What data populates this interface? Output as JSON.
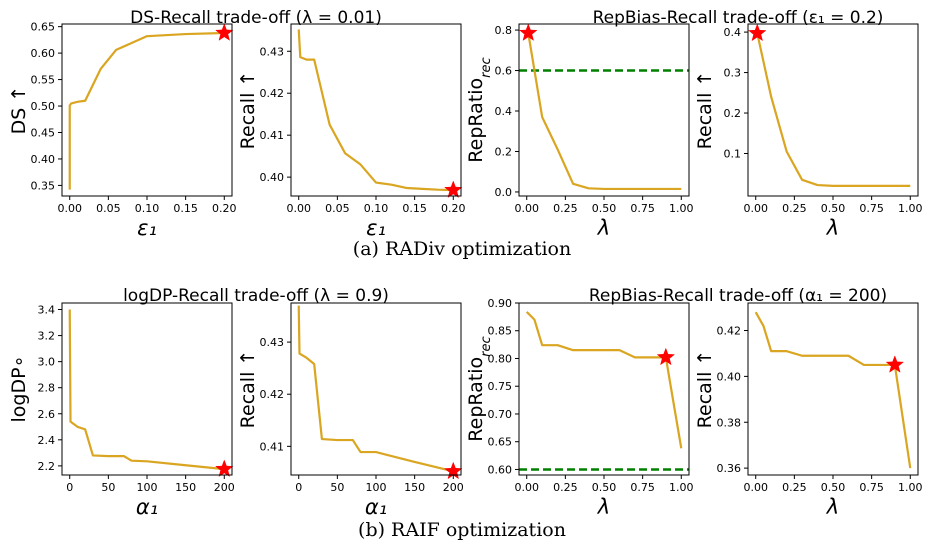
{
  "figure": {
    "titles": [
      "DS-Recall trade-off (λ = 0.01)",
      "RepBias-Recall trade-off (ε₁ = 0.2)",
      "logDP-Recall trade-off (λ = 0.9)",
      "RepBias-Recall trade-off (α₁ = 200)"
    ],
    "captions": [
      "(a) RADiv optimization",
      "(b) RAIF optimization"
    ],
    "colors": {
      "line": "#DAA520",
      "marker": "#FF0000",
      "threshold": "#008000"
    }
  },
  "chart_data": [
    {
      "type": "line",
      "xlabel": "ε₁",
      "ylabel": "DS ↑",
      "xlim": [
        -0.01,
        0.21
      ],
      "ylim": [
        0.33,
        0.655
      ],
      "xticks": [
        0.0,
        0.05,
        0.1,
        0.15,
        0.2
      ],
      "xtick_labels": [
        "0.00",
        "0.05",
        "0.10",
        "0.15",
        "0.20"
      ],
      "yticks": [
        0.35,
        0.4,
        0.45,
        0.5,
        0.55,
        0.6,
        0.65
      ],
      "ytick_labels": [
        "0.35",
        "0.40",
        "0.45",
        "0.50",
        "0.55",
        "0.60",
        "0.65"
      ],
      "x": [
        0.0,
        0.0,
        0.002,
        0.01,
        0.02,
        0.04,
        0.06,
        0.1,
        0.15,
        0.2
      ],
      "y": [
        0.342,
        0.501,
        0.505,
        0.508,
        0.51,
        0.57,
        0.606,
        0.632,
        0.636,
        0.638
      ],
      "highlight": {
        "x": 0.2,
        "y": 0.638
      }
    },
    {
      "type": "line",
      "xlabel": "ε₁",
      "ylabel": "Recall ↑",
      "xlim": [
        -0.01,
        0.21
      ],
      "ylim": [
        0.3955,
        0.4365
      ],
      "xticks": [
        0.0,
        0.05,
        0.1,
        0.15,
        0.2
      ],
      "xtick_labels": [
        "0.00",
        "0.05",
        "0.10",
        "0.15",
        "0.20"
      ],
      "yticks": [
        0.4,
        0.41,
        0.42,
        0.43
      ],
      "ytick_labels": [
        "0.40",
        "0.41",
        "0.42",
        "0.43"
      ],
      "x": [
        0.0,
        0.002,
        0.01,
        0.02,
        0.04,
        0.06,
        0.08,
        0.1,
        0.12,
        0.14,
        0.16,
        0.18,
        0.2
      ],
      "y": [
        0.4352,
        0.4286,
        0.428,
        0.428,
        0.4125,
        0.4057,
        0.403,
        0.3987,
        0.3982,
        0.3974,
        0.3972,
        0.397,
        0.3969
      ],
      "highlight": {
        "x": 0.2,
        "y": 0.3969
      }
    },
    {
      "type": "line",
      "xlabel": "λ",
      "ylabel": "RepRatio_rec",
      "xlim": [
        -0.05,
        1.05
      ],
      "ylim": [
        -0.02,
        0.83
      ],
      "xticks": [
        0.0,
        0.25,
        0.5,
        0.75,
        1.0
      ],
      "xtick_labels": [
        "0.00",
        "0.25",
        "0.50",
        "0.75",
        "1.00"
      ],
      "yticks": [
        0.0,
        0.2,
        0.4,
        0.6,
        0.8
      ],
      "ytick_labels": [
        "0.0",
        "0.2",
        "0.4",
        "0.6",
        "0.8"
      ],
      "x": [
        0.01,
        0.1,
        0.2,
        0.3,
        0.4,
        0.5,
        0.6,
        0.7,
        0.8,
        0.9,
        1.0
      ],
      "y": [
        0.785,
        0.37,
        0.21,
        0.04,
        0.018,
        0.015,
        0.015,
        0.015,
        0.015,
        0.015,
        0.015
      ],
      "highlight": {
        "x": 0.01,
        "y": 0.785
      },
      "hline": 0.6
    },
    {
      "type": "line",
      "xlabel": "λ",
      "ylabel": "Recall ↑",
      "xlim": [
        -0.05,
        1.05
      ],
      "ylim": [
        -0.005,
        0.42
      ],
      "xticks": [
        0.0,
        0.25,
        0.5,
        0.75,
        1.0
      ],
      "xtick_labels": [
        "0.00",
        "0.25",
        "0.50",
        "0.75",
        "1.00"
      ],
      "yticks": [
        0.1,
        0.2,
        0.3,
        0.4
      ],
      "ytick_labels": [
        "0.1",
        "0.2",
        "0.3",
        "0.4"
      ],
      "x": [
        0.01,
        0.1,
        0.2,
        0.3,
        0.4,
        0.5,
        0.6,
        0.7,
        0.8,
        0.9,
        1.0
      ],
      "y": [
        0.397,
        0.24,
        0.105,
        0.035,
        0.022,
        0.02,
        0.02,
        0.02,
        0.02,
        0.02,
        0.02
      ],
      "highlight": {
        "x": 0.01,
        "y": 0.397
      }
    },
    {
      "type": "line",
      "xlabel": "α₁",
      "ylabel": "logDP∘",
      "xlim": [
        -10,
        210
      ],
      "ylim": [
        2.13,
        3.45
      ],
      "xticks": [
        0,
        50,
        100,
        150,
        200
      ],
      "xtick_labels": [
        "0",
        "50",
        "100",
        "150",
        "200"
      ],
      "yticks": [
        2.2,
        2.4,
        2.6,
        2.8,
        3.0,
        3.2,
        3.4
      ],
      "ytick_labels": [
        "2.2",
        "2.4",
        "2.6",
        "2.8",
        "3.0",
        "3.2",
        "3.4"
      ],
      "x": [
        0,
        1,
        10,
        20,
        30,
        50,
        70,
        80,
        100,
        150,
        200
      ],
      "y": [
        3.4,
        2.54,
        2.5,
        2.48,
        2.28,
        2.275,
        2.275,
        2.24,
        2.235,
        2.205,
        2.175
      ],
      "highlight": {
        "x": 200,
        "y": 2.175
      }
    },
    {
      "type": "line",
      "xlabel": "α₁",
      "ylabel": "Recall ↑",
      "xlim": [
        -10,
        210
      ],
      "ylim": [
        0.4045,
        0.4375
      ],
      "xticks": [
        0,
        50,
        100,
        150,
        200
      ],
      "xtick_labels": [
        "0",
        "50",
        "100",
        "150",
        "200"
      ],
      "yticks": [
        0.41,
        0.42,
        0.43
      ],
      "ytick_labels": [
        "0.41",
        "0.42",
        "0.43"
      ],
      "x": [
        0,
        1,
        10,
        20,
        30,
        50,
        70,
        80,
        100,
        150,
        200
      ],
      "y": [
        0.437,
        0.4278,
        0.427,
        0.4258,
        0.4114,
        0.4112,
        0.4112,
        0.4089,
        0.4089,
        0.407,
        0.4052
      ],
      "highlight": {
        "x": 200,
        "y": 0.4052
      }
    },
    {
      "type": "line",
      "xlabel": "λ",
      "ylabel": "RepRatio_rec",
      "xlim": [
        -0.05,
        1.05
      ],
      "ylim": [
        0.59,
        0.9
      ],
      "xticks": [
        0.0,
        0.25,
        0.5,
        0.75,
        1.0
      ],
      "xtick_labels": [
        "0.00",
        "0.25",
        "0.50",
        "0.75",
        "1.00"
      ],
      "yticks": [
        0.6,
        0.65,
        0.7,
        0.75,
        0.8,
        0.85,
        0.9
      ],
      "ytick_labels": [
        "0.60",
        "0.65",
        "0.70",
        "0.75",
        "0.80",
        "0.85",
        "0.90"
      ],
      "x": [
        0.0,
        0.05,
        0.1,
        0.2,
        0.3,
        0.4,
        0.5,
        0.6,
        0.7,
        0.8,
        0.9,
        1.0
      ],
      "y": [
        0.884,
        0.87,
        0.824,
        0.824,
        0.815,
        0.815,
        0.815,
        0.815,
        0.802,
        0.802,
        0.802,
        0.638
      ],
      "highlight": {
        "x": 0.9,
        "y": 0.802
      },
      "hline": 0.6
    },
    {
      "type": "line",
      "xlabel": "λ",
      "ylabel": "Recall ↑",
      "xlim": [
        -0.05,
        1.05
      ],
      "ylim": [
        0.357,
        0.432
      ],
      "xticks": [
        0.0,
        0.25,
        0.5,
        0.75,
        1.0
      ],
      "xtick_labels": [
        "0.00",
        "0.25",
        "0.50",
        "0.75",
        "1.00"
      ],
      "yticks": [
        0.36,
        0.38,
        0.4,
        0.42
      ],
      "ytick_labels": [
        "0.36",
        "0.38",
        "0.40",
        "0.42"
      ],
      "x": [
        0.0,
        0.05,
        0.1,
        0.2,
        0.3,
        0.4,
        0.5,
        0.6,
        0.7,
        0.8,
        0.9,
        1.0
      ],
      "y": [
        0.428,
        0.422,
        0.411,
        0.411,
        0.409,
        0.409,
        0.409,
        0.409,
        0.405,
        0.405,
        0.405,
        0.36
      ],
      "highlight": {
        "x": 0.9,
        "y": 0.405
      }
    }
  ]
}
